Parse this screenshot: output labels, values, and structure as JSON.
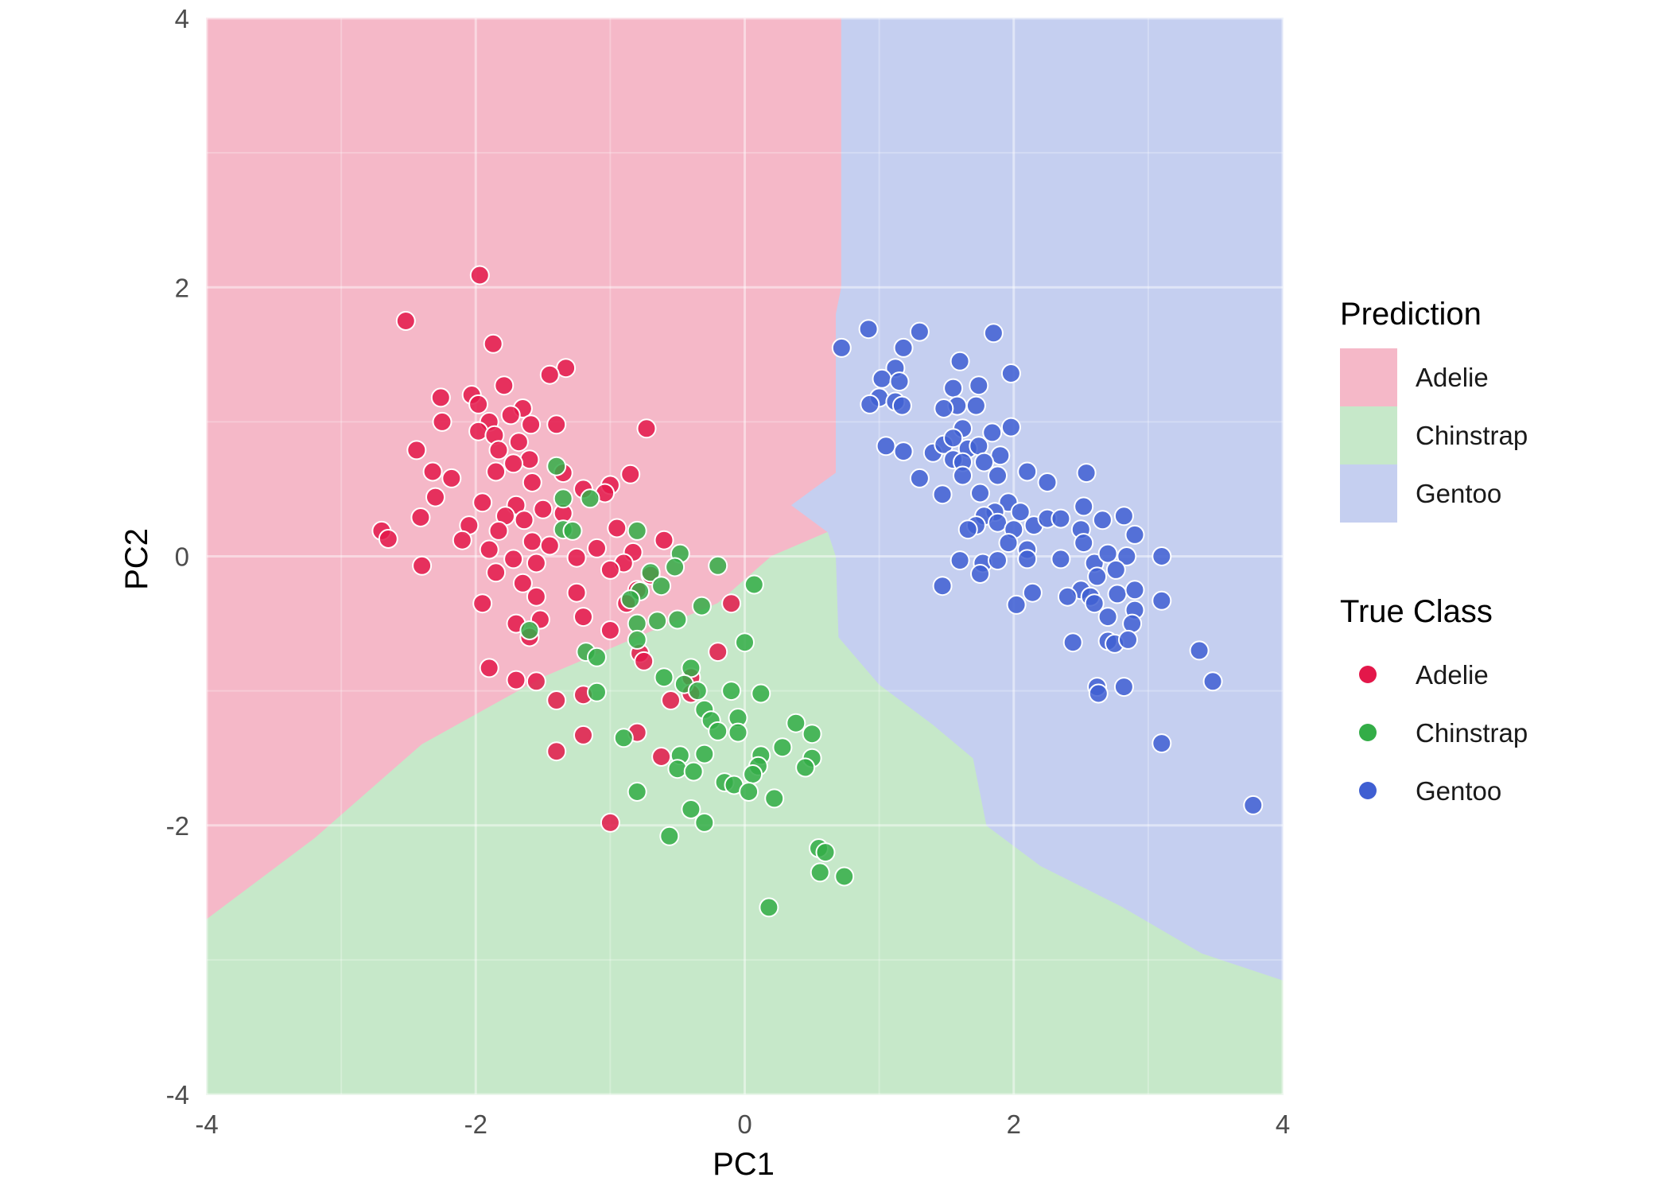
{
  "chart_data": {
    "type": "scatter",
    "title": "",
    "xlabel": "PC1",
    "ylabel": "PC2",
    "xlim": [
      -4,
      4
    ],
    "ylim": [
      -4,
      4
    ],
    "x_ticks": [
      -4,
      -2,
      0,
      2,
      4
    ],
    "y_ticks": [
      -4,
      -2,
      0,
      2,
      4
    ],
    "x_tick_labels": [
      "-4",
      "-2",
      "0",
      "2",
      "4"
    ],
    "y_tick_labels": [
      "-4",
      "-2",
      "0",
      "2",
      "4"
    ],
    "grid": true,
    "legend_position": "right",
    "region_colors": {
      "Adelie": "#f5b8c8",
      "Chinstrap": "#c6e8c9",
      "Gentoo": "#c5cff0"
    },
    "point_colors": {
      "Adelie": "#e3174a",
      "Chinstrap": "#33ad47",
      "Gentoo": "#3f5fd2"
    },
    "decision_regions": {
      "Adelie": [
        [
          -4,
          4
        ],
        [
          0.72,
          4
        ],
        [
          0.72,
          2.0
        ],
        [
          0.68,
          1.8
        ],
        [
          0.68,
          0.62
        ],
        [
          0.35,
          0.38
        ],
        [
          0.62,
          0.18
        ],
        [
          0.2,
          0.0
        ],
        [
          -0.2,
          -0.35
        ],
        [
          -1.5,
          -0.9
        ],
        [
          -2.4,
          -1.4
        ],
        [
          -3.2,
          -2.1
        ],
        [
          -4,
          -2.7
        ]
      ],
      "Chinstrap": [
        [
          -4,
          -2.7
        ],
        [
          -3.2,
          -2.1
        ],
        [
          -2.4,
          -1.4
        ],
        [
          -1.5,
          -0.9
        ],
        [
          -0.2,
          -0.35
        ],
        [
          0.2,
          0.0
        ],
        [
          0.62,
          0.18
        ],
        [
          0.68,
          0.0
        ],
        [
          0.7,
          -0.6
        ],
        [
          1.0,
          -0.95
        ],
        [
          1.4,
          -1.25
        ],
        [
          1.7,
          -1.5
        ],
        [
          1.8,
          -2.0
        ],
        [
          2.2,
          -2.3
        ],
        [
          2.8,
          -2.6
        ],
        [
          3.4,
          -2.95
        ],
        [
          4,
          -3.15
        ],
        [
          4,
          -4
        ],
        [
          -4,
          -4
        ]
      ],
      "Gentoo": [
        [
          0.72,
          4
        ],
        [
          4,
          4
        ],
        [
          4,
          -3.15
        ],
        [
          3.4,
          -2.95
        ],
        [
          2.8,
          -2.6
        ],
        [
          2.2,
          -2.3
        ],
        [
          1.8,
          -2.0
        ],
        [
          1.7,
          -1.5
        ],
        [
          1.4,
          -1.25
        ],
        [
          1.0,
          -0.95
        ],
        [
          0.7,
          -0.6
        ],
        [
          0.68,
          0.0
        ],
        [
          0.62,
          0.18
        ],
        [
          0.35,
          0.38
        ],
        [
          0.68,
          0.62
        ],
        [
          0.68,
          1.8
        ],
        [
          0.72,
          2.0
        ]
      ]
    },
    "series": [
      {
        "name": "Adelie",
        "points": [
          [
            -1.97,
            2.09
          ],
          [
            -2.52,
            1.75
          ],
          [
            -1.87,
            1.58
          ],
          [
            -1.33,
            1.4
          ],
          [
            -1.45,
            1.35
          ],
          [
            -1.79,
            1.27
          ],
          [
            -2.03,
            1.2
          ],
          [
            -2.26,
            1.18
          ],
          [
            -1.65,
            1.1
          ],
          [
            -1.98,
            1.13
          ],
          [
            -1.74,
            1.05
          ],
          [
            -1.9,
            1.0
          ],
          [
            -2.25,
            1.0
          ],
          [
            -1.59,
            0.98
          ],
          [
            -1.4,
            0.98
          ],
          [
            -0.73,
            0.95
          ],
          [
            -1.98,
            0.93
          ],
          [
            -1.86,
            0.9
          ],
          [
            -1.68,
            0.85
          ],
          [
            -2.44,
            0.79
          ],
          [
            -1.83,
            0.79
          ],
          [
            -1.6,
            0.72
          ],
          [
            -1.72,
            0.69
          ],
          [
            -2.32,
            0.63
          ],
          [
            -2.18,
            0.58
          ],
          [
            -1.35,
            0.62
          ],
          [
            -0.85,
            0.61
          ],
          [
            -1.85,
            0.63
          ],
          [
            -1.58,
            0.55
          ],
          [
            -1.0,
            0.53
          ],
          [
            -1.2,
            0.5
          ],
          [
            -1.04,
            0.47
          ],
          [
            -2.3,
            0.44
          ],
          [
            -1.95,
            0.4
          ],
          [
            -1.7,
            0.38
          ],
          [
            -1.5,
            0.35
          ],
          [
            -1.35,
            0.32
          ],
          [
            -1.78,
            0.3
          ],
          [
            -2.41,
            0.29
          ],
          [
            -1.64,
            0.27
          ],
          [
            -2.05,
            0.23
          ],
          [
            -1.83,
            0.19
          ],
          [
            -2.7,
            0.19
          ],
          [
            -0.95,
            0.21
          ],
          [
            -2.65,
            0.13
          ],
          [
            -2.1,
            0.12
          ],
          [
            -1.58,
            0.11
          ],
          [
            -0.6,
            0.12
          ],
          [
            -1.45,
            0.08
          ],
          [
            -1.9,
            0.05
          ],
          [
            -1.1,
            0.06
          ],
          [
            -0.83,
            0.03
          ],
          [
            -1.25,
            -0.01
          ],
          [
            -1.72,
            -0.02
          ],
          [
            -2.4,
            -0.07
          ],
          [
            -1.55,
            -0.05
          ],
          [
            -0.9,
            -0.05
          ],
          [
            -1.0,
            -0.1
          ],
          [
            -0.7,
            -0.14
          ],
          [
            -1.85,
            -0.12
          ],
          [
            -1.65,
            -0.2
          ],
          [
            -0.8,
            -0.25
          ],
          [
            -1.25,
            -0.27
          ],
          [
            -1.95,
            -0.35
          ],
          [
            -1.55,
            -0.3
          ],
          [
            -0.88,
            -0.35
          ],
          [
            -0.1,
            -0.35
          ],
          [
            -1.2,
            -0.45
          ],
          [
            -1.52,
            -0.47
          ],
          [
            -1.7,
            -0.5
          ],
          [
            -1.0,
            -0.55
          ],
          [
            -1.6,
            -0.6
          ],
          [
            -0.78,
            -0.72
          ],
          [
            -0.2,
            -0.71
          ],
          [
            -0.75,
            -0.78
          ],
          [
            -1.9,
            -0.83
          ],
          [
            -1.7,
            -0.92
          ],
          [
            -1.55,
            -0.93
          ],
          [
            -0.4,
            -0.9
          ],
          [
            -0.4,
            -1.02
          ],
          [
            -1.4,
            -1.07
          ],
          [
            -1.2,
            -1.03
          ],
          [
            -0.55,
            -1.07
          ],
          [
            -1.2,
            -1.33
          ],
          [
            -0.8,
            -1.31
          ],
          [
            -1.4,
            -1.45
          ],
          [
            -0.62,
            -1.49
          ],
          [
            -1.0,
            -1.98
          ]
        ]
      },
      {
        "name": "Chinstrap",
        "points": [
          [
            -1.4,
            0.67
          ],
          [
            -1.15,
            0.43
          ],
          [
            -1.35,
            0.43
          ],
          [
            -1.35,
            0.2
          ],
          [
            -1.28,
            0.19
          ],
          [
            -0.8,
            0.19
          ],
          [
            -0.48,
            0.02
          ],
          [
            -0.2,
            -0.07
          ],
          [
            -0.7,
            -0.12
          ],
          [
            -0.52,
            -0.08
          ],
          [
            0.07,
            -0.21
          ],
          [
            -0.62,
            -0.22
          ],
          [
            -0.78,
            -0.26
          ],
          [
            -0.85,
            -0.32
          ],
          [
            -0.32,
            -0.37
          ],
          [
            -0.5,
            -0.47
          ],
          [
            -0.65,
            -0.48
          ],
          [
            -0.8,
            -0.5
          ],
          [
            -1.6,
            -0.55
          ],
          [
            -0.8,
            -0.62
          ],
          [
            -1.18,
            -0.71
          ],
          [
            -1.1,
            -0.75
          ],
          [
            0.0,
            -0.64
          ],
          [
            -0.4,
            -0.83
          ],
          [
            -0.6,
            -0.9
          ],
          [
            -0.45,
            -0.95
          ],
          [
            -0.35,
            -1.0
          ],
          [
            -1.1,
            -1.01
          ],
          [
            -0.1,
            -1.0
          ],
          [
            0.12,
            -1.02
          ],
          [
            -0.3,
            -1.14
          ],
          [
            -0.25,
            -1.22
          ],
          [
            -0.05,
            -1.2
          ],
          [
            0.38,
            -1.24
          ],
          [
            0.5,
            -1.32
          ],
          [
            -0.2,
            -1.3
          ],
          [
            -0.05,
            -1.31
          ],
          [
            -0.9,
            -1.35
          ],
          [
            0.28,
            -1.42
          ],
          [
            0.12,
            -1.48
          ],
          [
            0.1,
            -1.56
          ],
          [
            0.5,
            -1.5
          ],
          [
            0.45,
            -1.57
          ],
          [
            -0.3,
            -1.47
          ],
          [
            -0.48,
            -1.48
          ],
          [
            -0.5,
            -1.58
          ],
          [
            -0.38,
            -1.6
          ],
          [
            0.06,
            -1.62
          ],
          [
            -0.15,
            -1.68
          ],
          [
            -0.08,
            -1.7
          ],
          [
            0.03,
            -1.75
          ],
          [
            0.22,
            -1.8
          ],
          [
            -0.8,
            -1.75
          ],
          [
            -0.4,
            -1.88
          ],
          [
            -0.3,
            -1.98
          ],
          [
            -0.56,
            -2.08
          ],
          [
            0.55,
            -2.17
          ],
          [
            0.6,
            -2.2
          ],
          [
            0.56,
            -2.35
          ],
          [
            0.74,
            -2.38
          ],
          [
            0.18,
            -2.61
          ]
        ]
      },
      {
        "name": "Gentoo",
        "points": [
          [
            0.72,
            1.55
          ],
          [
            0.92,
            1.69
          ],
          [
            1.18,
            1.55
          ],
          [
            1.3,
            1.67
          ],
          [
            1.85,
            1.66
          ],
          [
            1.6,
            1.45
          ],
          [
            1.12,
            1.4
          ],
          [
            1.02,
            1.32
          ],
          [
            1.15,
            1.3
          ],
          [
            1.98,
            1.36
          ],
          [
            1.55,
            1.25
          ],
          [
            1.74,
            1.27
          ],
          [
            1.0,
            1.18
          ],
          [
            0.93,
            1.13
          ],
          [
            1.12,
            1.15
          ],
          [
            1.17,
            1.12
          ],
          [
            1.58,
            1.12
          ],
          [
            1.72,
            1.12
          ],
          [
            1.48,
            1.1
          ],
          [
            1.62,
            0.95
          ],
          [
            1.98,
            0.96
          ],
          [
            1.84,
            0.92
          ],
          [
            1.05,
            0.82
          ],
          [
            1.18,
            0.78
          ],
          [
            1.4,
            0.77
          ],
          [
            1.48,
            0.83
          ],
          [
            1.55,
            0.88
          ],
          [
            1.66,
            0.8
          ],
          [
            1.74,
            0.82
          ],
          [
            1.9,
            0.75
          ],
          [
            1.55,
            0.72
          ],
          [
            1.62,
            0.7
          ],
          [
            1.78,
            0.7
          ],
          [
            1.88,
            0.6
          ],
          [
            2.1,
            0.63
          ],
          [
            2.25,
            0.55
          ],
          [
            2.54,
            0.62
          ],
          [
            1.3,
            0.58
          ],
          [
            1.62,
            0.6
          ],
          [
            1.47,
            0.46
          ],
          [
            1.75,
            0.47
          ],
          [
            1.96,
            0.4
          ],
          [
            1.86,
            0.33
          ],
          [
            2.05,
            0.33
          ],
          [
            2.15,
            0.23
          ],
          [
            2.25,
            0.28
          ],
          [
            2.35,
            0.28
          ],
          [
            2.52,
            0.37
          ],
          [
            2.82,
            0.3
          ],
          [
            1.78,
            0.3
          ],
          [
            1.88,
            0.25
          ],
          [
            2.0,
            0.2
          ],
          [
            1.72,
            0.23
          ],
          [
            1.66,
            0.2
          ],
          [
            2.66,
            0.27
          ],
          [
            2.5,
            0.2
          ],
          [
            2.9,
            0.16
          ],
          [
            1.96,
            0.1
          ],
          [
            2.1,
            0.05
          ],
          [
            2.52,
            0.1
          ],
          [
            1.6,
            -0.03
          ],
          [
            1.77,
            -0.05
          ],
          [
            1.88,
            -0.03
          ],
          [
            1.75,
            -0.13
          ],
          [
            2.1,
            -0.02
          ],
          [
            2.35,
            -0.02
          ],
          [
            2.6,
            -0.05
          ],
          [
            2.7,
            0.02
          ],
          [
            2.84,
            0.0
          ],
          [
            3.1,
            0.0
          ],
          [
            2.62,
            -0.15
          ],
          [
            2.76,
            -0.1
          ],
          [
            2.5,
            -0.25
          ],
          [
            2.57,
            -0.3
          ],
          [
            2.4,
            -0.3
          ],
          [
            2.14,
            -0.27
          ],
          [
            2.6,
            -0.35
          ],
          [
            2.7,
            -0.45
          ],
          [
            2.77,
            -0.28
          ],
          [
            2.9,
            -0.25
          ],
          [
            2.02,
            -0.36
          ],
          [
            1.47,
            -0.22
          ],
          [
            2.9,
            -0.4
          ],
          [
            3.1,
            -0.33
          ],
          [
            2.88,
            -0.5
          ],
          [
            2.44,
            -0.64
          ],
          [
            2.7,
            -0.63
          ],
          [
            2.75,
            -0.65
          ],
          [
            2.85,
            -0.62
          ],
          [
            3.38,
            -0.7
          ],
          [
            2.62,
            -0.97
          ],
          [
            2.63,
            -1.02
          ],
          [
            2.82,
            -0.97
          ],
          [
            3.48,
            -0.93
          ],
          [
            3.1,
            -1.39
          ],
          [
            3.78,
            -1.85
          ]
        ]
      }
    ]
  },
  "legend": {
    "prediction_title": "Prediction",
    "true_class_title": "True Class",
    "items": [
      "Adelie",
      "Chinstrap",
      "Gentoo"
    ]
  }
}
